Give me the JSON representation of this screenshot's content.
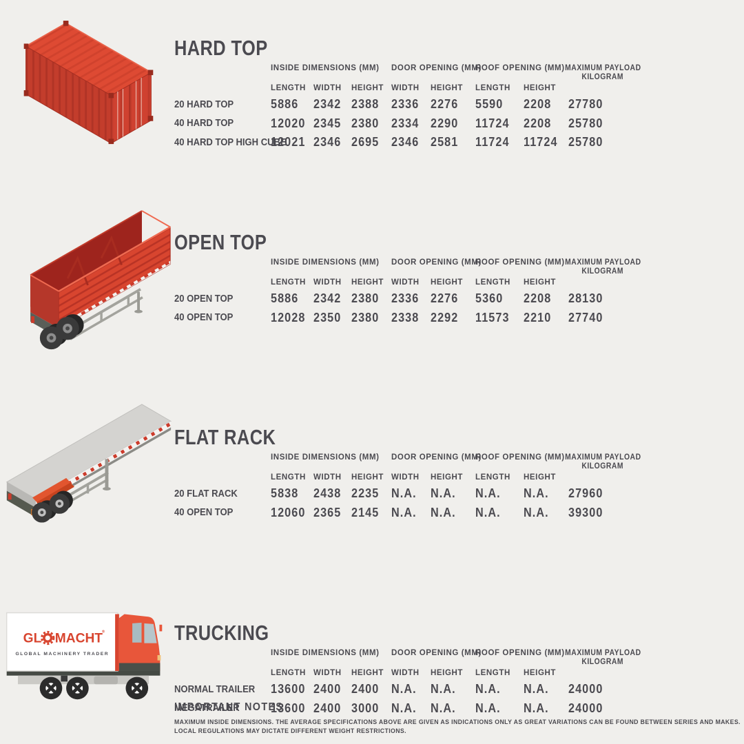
{
  "page": {
    "background": "#f0efec",
    "text_color": "#4b4a50",
    "accent_red": "#d8452f"
  },
  "column_groups": [
    {
      "label": "INSIDE DIMENSIONS (MM)",
      "sub": [
        "LENGTH",
        "WIDTH",
        "HEIGHT"
      ]
    },
    {
      "label": "DOOR OPENING (MM)",
      "sub": [
        "WIDTH",
        "HEIGHT"
      ]
    },
    {
      "label": "ROOF OPENING (MM)",
      "sub": [
        "LENGTH",
        "HEIGHT"
      ]
    },
    {
      "label": "MAXIMUM PAYLOAD",
      "label2": "KILOGRAM",
      "sub": []
    }
  ],
  "sections": [
    {
      "id": "hard-top",
      "title": "HARD TOP",
      "illustration": "red-shipping-container",
      "rows": [
        {
          "label": "20 HARD TOP",
          "values": [
            "5886",
            "2342",
            "2388",
            "2336",
            "2276",
            "5590",
            "2208",
            "27780"
          ]
        },
        {
          "label": "40 HARD TOP",
          "values": [
            "12020",
            "2345",
            "2380",
            "2334",
            "2290",
            "11724",
            "2208",
            "25780"
          ]
        },
        {
          "label": "40 HARD TOP HIGH CUBE",
          "values": [
            "12021",
            "2346",
            "2695",
            "2346",
            "2581",
            "11724",
            "11724",
            "25780"
          ]
        }
      ]
    },
    {
      "id": "open-top",
      "title": "OPEN TOP",
      "illustration": "red-open-top-trailer",
      "rows": [
        {
          "label": "20 OPEN TOP",
          "values": [
            "5886",
            "2342",
            "2380",
            "2336",
            "2276",
            "5360",
            "2208",
            "28130"
          ]
        },
        {
          "label": "40 OPEN TOP",
          "values": [
            "12028",
            "2350",
            "2380",
            "2338",
            "2292",
            "11573",
            "2210",
            "27740"
          ]
        }
      ]
    },
    {
      "id": "flat-rack",
      "title": "FLAT RACK",
      "illustration": "gray-flat-rack-trailer",
      "rows": [
        {
          "label": "20 FLAT RACK",
          "values": [
            "5838",
            "2438",
            "2235",
            "N.A.",
            "N.A.",
            "N.A.",
            "N.A.",
            "27960"
          ]
        },
        {
          "label": "40 OPEN TOP",
          "values": [
            "12060",
            "2365",
            "2145",
            "N.A.",
            "N.A.",
            "N.A.",
            "N.A.",
            "39300"
          ]
        }
      ]
    },
    {
      "id": "trucking",
      "title": "TRUCKING",
      "illustration": "glomacht-box-truck",
      "rows": [
        {
          "label": "NORMAL TRAILER",
          "values": [
            "13600",
            "2400",
            "2400",
            "N.A.",
            "N.A.",
            "N.A.",
            "N.A.",
            "24000"
          ]
        },
        {
          "label": "MEGATRAILER",
          "values": [
            "13600",
            "2400",
            "3000",
            "N.A.",
            "N.A.",
            "N.A.",
            "N.A.",
            "24000"
          ]
        }
      ]
    }
  ],
  "logo": {
    "prefix": "GL",
    "suffix": "MACHT",
    "mark": "®",
    "tagline": "GLOBAL MACHINERY TRADER"
  },
  "notes": {
    "title": "IMPORTANT NOTES",
    "lines": [
      "MAXIMUM INSIDE DIMENSIONS. THE AVERAGE SPECIFICATIONS ABOVE ARE GIVEN AS INDICATIONS ONLY AS GREAT VARIATIONS CAN BE FOUND BETWEEN SERIES AND MAKES.",
      "LOCAL REGULATIONS MAY DICTATE DIFFERENT WEIGHT RESTRICTIONS."
    ]
  }
}
